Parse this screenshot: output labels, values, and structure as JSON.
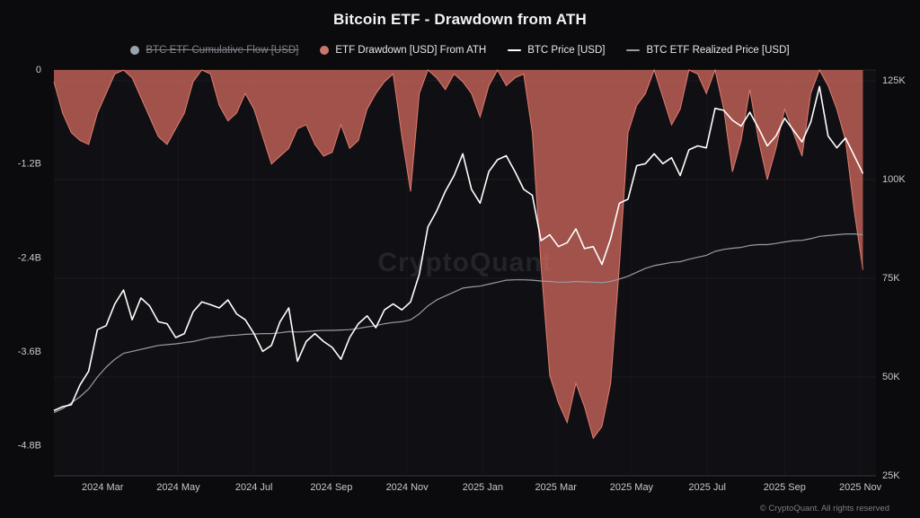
{
  "chart": {
    "title": "Bitcoin ETF - Drawdown from ATH",
    "watermark": "CryptoQuant",
    "footer": "© CryptoQuant. All rights reserved"
  },
  "legend": {
    "position": "top",
    "items": [
      {
        "label": "BTC ETF Cumulative Flow [USD]",
        "marker": "circle",
        "color": "#9aa3ad",
        "disabled": true
      },
      {
        "label": "ETF Drawdown [USD] From ATH",
        "marker": "circle",
        "color": "#c9776e",
        "disabled": false
      },
      {
        "label": "BTC Price [USD]",
        "marker": "line",
        "color": "#ffffff",
        "disabled": false
      },
      {
        "label": "BTC ETF Realized Price [USD]",
        "marker": "line",
        "color": "#9a9aa2",
        "disabled": false
      }
    ]
  },
  "chart_data": {
    "type": "mixed",
    "title": "Bitcoin ETF - Drawdown from ATH",
    "grid": "faint",
    "legend_position": "top",
    "x_axis": {
      "tick_labels": [
        "2024 Mar",
        "2024 May",
        "2024 Jul",
        "2024 Sep",
        "2024 Nov",
        "2025 Jan",
        "2025 Mar",
        "2025 May",
        "2025 Jul",
        "2025 Sep",
        "2025 Nov"
      ],
      "tick_weeks": [
        5.6,
        14.3,
        23.0,
        31.9,
        40.6,
        49.3,
        57.7,
        66.4,
        75.1,
        84.0,
        92.7
      ],
      "domain_weeks": [
        0,
        94.5
      ]
    },
    "left_axis": {
      "tick_labels": [
        "0",
        "-1.2B",
        "-2.4B",
        "-3.6B",
        "-4.8B"
      ],
      "tick_values": [
        0,
        -1.2,
        -2.4,
        -3.6,
        -4.8
      ],
      "range": [
        -5.18,
        0
      ],
      "unit": "USD billions (drawdown)"
    },
    "right_axis": {
      "tick_labels": [
        "125K",
        "100K",
        "75K",
        "50K",
        "25K"
      ],
      "tick_values": [
        125,
        100,
        75,
        50,
        25
      ],
      "range": [
        25,
        127.7
      ],
      "unit": "USD thousands (price)"
    },
    "series": [
      {
        "name": "ETF Drawdown [USD] From ATH",
        "type": "area",
        "axis": "left",
        "unit": "billion USD",
        "color": "#d96c60",
        "stroke": "#eb8478",
        "values": [
          -0.15,
          -0.55,
          -0.8,
          -0.9,
          -0.95,
          -0.55,
          -0.3,
          -0.05,
          0,
          -0.1,
          -0.35,
          -0.6,
          -0.85,
          -0.95,
          -0.75,
          -0.55,
          -0.15,
          0,
          -0.05,
          -0.45,
          -0.65,
          -0.55,
          -0.3,
          -0.5,
          -0.85,
          -1.2,
          -1.1,
          -1.0,
          -0.75,
          -0.7,
          -0.95,
          -1.1,
          -1.05,
          -0.7,
          -1.0,
          -0.9,
          -0.5,
          -0.3,
          -0.15,
          -0.05,
          -0.85,
          -1.55,
          -0.3,
          0,
          -0.1,
          -0.25,
          -0.05,
          -0.15,
          -0.3,
          -0.6,
          -0.2,
          0,
          -0.2,
          -0.1,
          -0.05,
          -0.8,
          -2.5,
          -3.9,
          -4.25,
          -4.5,
          -4.0,
          -4.3,
          -4.7,
          -4.55,
          -4.0,
          -2.5,
          -0.8,
          -0.45,
          -0.3,
          0,
          -0.35,
          -0.7,
          -0.5,
          0,
          -0.05,
          -0.3,
          0,
          -0.5,
          -1.3,
          -0.9,
          -0.25,
          -0.9,
          -1.4,
          -1.0,
          -0.5,
          -0.8,
          -1.1,
          -0.3,
          0,
          -0.2,
          -0.5,
          -0.9,
          -1.8,
          -2.55
        ]
      },
      {
        "name": "BTC ETF Realized Price [USD]",
        "type": "line",
        "axis": "right",
        "unit": "thousand USD",
        "color": "#9a9aa2",
        "values": [
          41,
          42,
          43.5,
          45,
          47,
          50,
          52.5,
          54.5,
          56,
          56.5,
          57,
          57.5,
          58,
          58.2,
          58.4,
          58.7,
          59,
          59.5,
          60,
          60.2,
          60.5,
          60.6,
          60.8,
          60.9,
          61,
          61,
          61.2,
          61.5,
          61.4,
          61.5,
          61.7,
          61.8,
          61.8,
          61.9,
          62,
          62.3,
          62.7,
          63,
          63.5,
          63.8,
          64,
          64.5,
          66,
          68,
          69.5,
          70.5,
          71.5,
          72.5,
          72.8,
          73,
          73.5,
          74,
          74.5,
          74.6,
          74.6,
          74.5,
          74.3,
          74.2,
          74,
          74,
          74.2,
          74.1,
          74,
          73.9,
          74.2,
          74.8,
          75.5,
          76.5,
          77.5,
          78.2,
          78.6,
          79,
          79.2,
          79.8,
          80.3,
          80.8,
          81.8,
          82.3,
          82.6,
          82.8,
          83.3,
          83.5,
          83.5,
          83.8,
          84.2,
          84.5,
          84.6,
          85,
          85.6,
          85.8,
          86,
          86.2,
          86.2,
          86
        ]
      },
      {
        "name": "BTC Price [USD]",
        "type": "line",
        "axis": "right",
        "unit": "thousand USD",
        "color": "#ffffff",
        "values": [
          41.5,
          42.5,
          43,
          48,
          51.5,
          62,
          63,
          68.5,
          72,
          64.5,
          70,
          68,
          64,
          63.5,
          60,
          61,
          66.5,
          69,
          68.3,
          67.5,
          69.5,
          66,
          64.5,
          61,
          56.5,
          58,
          64,
          67.5,
          54,
          59,
          61,
          59,
          57.5,
          54.5,
          60,
          63.5,
          65.5,
          62.5,
          67,
          68.5,
          67,
          69,
          76,
          88,
          92,
          97,
          101,
          106.5,
          97.5,
          94,
          102,
          105,
          106,
          102,
          97.5,
          96,
          84.5,
          86,
          83,
          84,
          87.5,
          82.5,
          83,
          78.5,
          85,
          94,
          95,
          103.5,
          104,
          106.5,
          104,
          105.5,
          101,
          107.5,
          108.5,
          108,
          118,
          117.5,
          115,
          113.5,
          117,
          113,
          108.5,
          111,
          115.5,
          112.5,
          109.5,
          114.5,
          123.5,
          111,
          108,
          110.5,
          106,
          101.5
        ]
      }
    ]
  }
}
